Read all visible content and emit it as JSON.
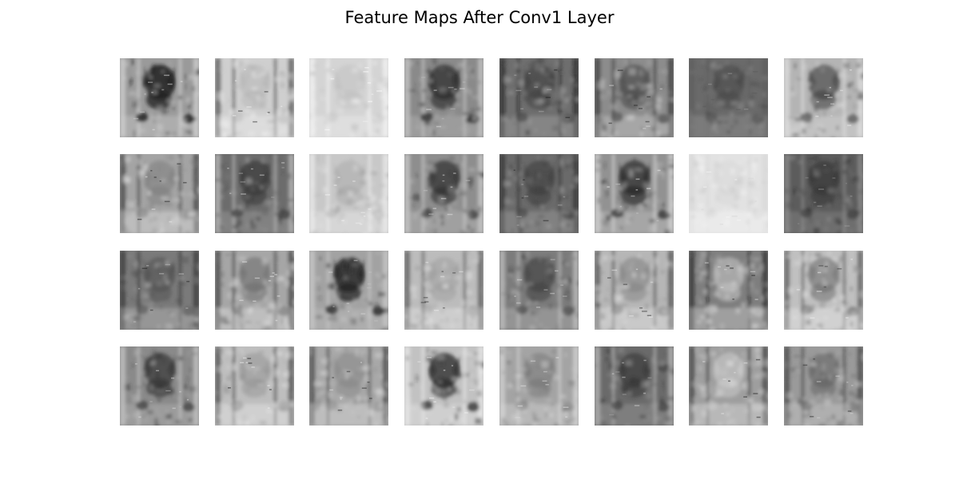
{
  "figure": {
    "title": "Feature Maps After Conv1 Layer"
  },
  "grid": {
    "rows": 4,
    "cols": 8,
    "colormap": "gray"
  },
  "feature_maps": [
    {
      "row": 1,
      "col": 1,
      "bg": "#9a9a9a",
      "blob": "#1c1c1c",
      "detail": "#d0d0d0",
      "edge": "#e8e8e8",
      "contrast": 0.8
    },
    {
      "row": 1,
      "col": 2,
      "bg": "#cfcfcf",
      "blob": "#a8a8a8",
      "detail": "#f4f4f4",
      "edge": "#2a2a2a",
      "contrast": 0.35
    },
    {
      "row": 1,
      "col": 3,
      "bg": "#d4d4d4",
      "blob": "#b4b4b4",
      "detail": "#f2f2f2",
      "edge": "#ffffff",
      "contrast": 0.3
    },
    {
      "row": 1,
      "col": 4,
      "bg": "#8a8a8a",
      "blob": "#2a2a2a",
      "detail": "#bcbcbc",
      "edge": "#e0e0e0",
      "contrast": 0.7
    },
    {
      "row": 1,
      "col": 5,
      "bg": "#6e6e6e",
      "blob": "#3c3c3c",
      "detail": "#b0b0b0",
      "edge": "#1a1a1a",
      "contrast": 0.55
    },
    {
      "row": 1,
      "col": 6,
      "bg": "#8c8c8c",
      "blob": "#4a4a4a",
      "detail": "#d8d8d8",
      "edge": "#222222",
      "contrast": 0.65
    },
    {
      "row": 1,
      "col": 7,
      "bg": "#6a6a6a",
      "blob": "#404040",
      "detail": "#9c9c9c",
      "edge": "#5a5a5a",
      "contrast": 0.45
    },
    {
      "row": 1,
      "col": 8,
      "bg": "#b4b4b4",
      "blob": "#3a3a3a",
      "detail": "#dedede",
      "edge": "#f0f0f0",
      "contrast": 0.6
    },
    {
      "row": 2,
      "col": 1,
      "bg": "#a4a4a4",
      "blob": "#7a7a7a",
      "detail": "#ececec",
      "edge": "#1e1e1e",
      "contrast": 0.5
    },
    {
      "row": 2,
      "col": 2,
      "bg": "#6c6c6c",
      "blob": "#333333",
      "detail": "#a8a8a8",
      "edge": "#dcdcdc",
      "contrast": 0.6
    },
    {
      "row": 2,
      "col": 3,
      "bg": "#c8c8c8",
      "blob": "#9a9a9a",
      "detail": "#f0f0f0",
      "edge": "#f8f8f8",
      "contrast": 0.35
    },
    {
      "row": 2,
      "col": 4,
      "bg": "#8e8e8e",
      "blob": "#303030",
      "detail": "#c4c4c4",
      "edge": "#e4e4e4",
      "contrast": 0.7
    },
    {
      "row": 2,
      "col": 5,
      "bg": "#6a6a6a",
      "blob": "#3a3a3a",
      "detail": "#acacac",
      "edge": "#202020",
      "contrast": 0.55
    },
    {
      "row": 2,
      "col": 6,
      "bg": "#929292",
      "blob": "#262626",
      "detail": "#cacaca",
      "edge": "#f0f0f0",
      "contrast": 0.7
    },
    {
      "row": 2,
      "col": 7,
      "bg": "#e2e2e2",
      "blob": "#c6c6c6",
      "detail": "#f8f8f8",
      "edge": "#d6d6d6",
      "contrast": 0.2
    },
    {
      "row": 2,
      "col": 8,
      "bg": "#5c5c5c",
      "blob": "#2c2c2c",
      "detail": "#8e8e8e",
      "edge": "#a0a0a0",
      "contrast": 0.5
    },
    {
      "row": 3,
      "col": 1,
      "bg": "#7a7a7a",
      "blob": "#4e4e4e",
      "detail": "#c8c8c8",
      "edge": "#1c1c1c",
      "contrast": 0.55
    },
    {
      "row": 3,
      "col": 2,
      "bg": "#a6a6a6",
      "blob": "#6c6c6c",
      "detail": "#ececec",
      "edge": "#202020",
      "contrast": 0.55
    },
    {
      "row": 3,
      "col": 3,
      "bg": "#a2a2a2",
      "blob": "#1e1e1e",
      "detail": "#c4c4c4",
      "edge": "#d8d8d8",
      "contrast": 0.75
    },
    {
      "row": 3,
      "col": 4,
      "bg": "#bcbcbc",
      "blob": "#969696",
      "detail": "#eeeeee",
      "edge": "#3a3a3a",
      "contrast": 0.4
    },
    {
      "row": 3,
      "col": 5,
      "bg": "#7c7c7c",
      "blob": "#3e3e3e",
      "detail": "#c0c0c0",
      "edge": "#dadada",
      "contrast": 0.6
    },
    {
      "row": 3,
      "col": 6,
      "bg": "#b6b6b6",
      "blob": "#7e7e7e",
      "detail": "#eaeaea",
      "edge": "#303030",
      "contrast": 0.5
    },
    {
      "row": 3,
      "col": 7,
      "bg": "#7e7e7e",
      "blob": "#c8c8c8",
      "detail": "#dedede",
      "edge": "#1a1a1a",
      "contrast": 0.55
    },
    {
      "row": 3,
      "col": 8,
      "bg": "#c0c0c0",
      "blob": "#6a6a6a",
      "detail": "#f2f2f2",
      "edge": "#3c3c3c",
      "contrast": 0.55
    },
    {
      "row": 4,
      "col": 1,
      "bg": "#8a8a8a",
      "blob": "#2e2e2e",
      "detail": "#bcbcbc",
      "edge": "#dedede",
      "contrast": 0.65
    },
    {
      "row": 4,
      "col": 2,
      "bg": "#bebebe",
      "blob": "#8c8c8c",
      "detail": "#f2f2f2",
      "edge": "#1c1c1c",
      "contrast": 0.45
    },
    {
      "row": 4,
      "col": 3,
      "bg": "#a8a8a8",
      "blob": "#808080",
      "detail": "#e6e6e6",
      "edge": "#2a2a2a",
      "contrast": 0.45
    },
    {
      "row": 4,
      "col": 4,
      "bg": "#c2c2c2",
      "blob": "#2a2a2a",
      "detail": "#e8e8e8",
      "edge": "#f6f6f6",
      "contrast": 0.75
    },
    {
      "row": 4,
      "col": 5,
      "bg": "#a4a4a4",
      "blob": "#6e6e6e",
      "detail": "#dcdcdc",
      "edge": "#e6e6e6",
      "contrast": 0.45
    },
    {
      "row": 4,
      "col": 6,
      "bg": "#6a6a6a",
      "blob": "#303030",
      "detail": "#a4a4a4",
      "edge": "#d8d8d8",
      "contrast": 0.55
    },
    {
      "row": 4,
      "col": 7,
      "bg": "#9e9e9e",
      "blob": "#d2d2d2",
      "detail": "#e8e8e8",
      "edge": "#1e1e1e",
      "contrast": 0.5
    },
    {
      "row": 4,
      "col": 8,
      "bg": "#9a9a9a",
      "blob": "#5c5c5c",
      "detail": "#d6d6d6",
      "edge": "#2a2a2a",
      "contrast": 0.5
    }
  ]
}
